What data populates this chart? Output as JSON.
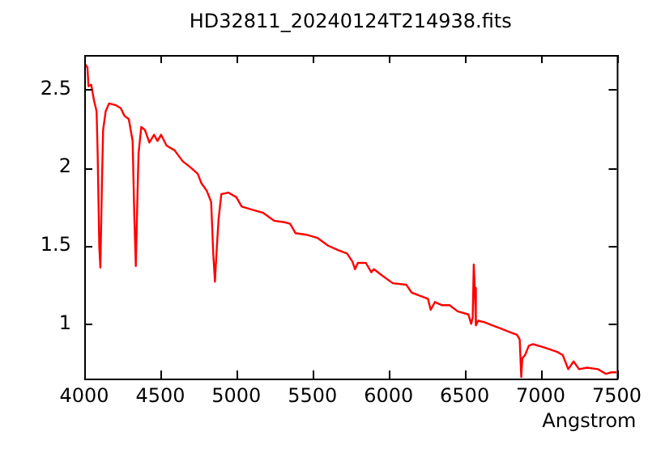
{
  "chart_data": {
    "type": "line",
    "title": "HD32811_20240124T214938.fits",
    "xlabel": "Angstrom",
    "xlim": [
      4000,
      7500
    ],
    "xticks": [
      4000,
      4500,
      5000,
      5500,
      6000,
      6500,
      7000,
      7500
    ],
    "ylim": [
      0.65,
      2.72
    ],
    "yticks": [
      1,
      1.5,
      2,
      2.5
    ],
    "grid": false,
    "legend": false,
    "marker": "none",
    "line_style": "solid",
    "series": [
      {
        "color": "#ff0000",
        "x": [
          4000,
          4021,
          4028,
          4046,
          4064,
          4081,
          4088,
          4099,
          4106,
          4117,
          4124,
          4141,
          4163,
          4205,
          4240,
          4265,
          4293,
          4318,
          4329,
          4339,
          4350,
          4357,
          4375,
          4399,
          4428,
          4459,
          4481,
          4505,
          4541,
          4594,
          4647,
          4700,
          4746,
          4770,
          4806,
          4834,
          4848,
          4859,
          4869,
          4883,
          4901,
          4947,
          5000,
          5035,
          5106,
          5177,
          5247,
          5318,
          5353,
          5389,
          5461,
          5532,
          5603,
          5674,
          5727,
          5762,
          5780,
          5798,
          5851,
          5887,
          5904,
          5957,
          6028,
          6117,
          6152,
          6206,
          6259,
          6277,
          6305,
          6348,
          6401,
          6454,
          6525,
          6543,
          6553,
          6560,
          6567,
          6574,
          6589,
          6631,
          6684,
          6738,
          6791,
          6844,
          6862,
          6872,
          6879,
          6897,
          6922,
          6950,
          7021,
          7110,
          7145,
          7181,
          7216,
          7252,
          7305,
          7376,
          7429,
          7465,
          7500
        ],
        "values": [
          2.67,
          2.64,
          2.52,
          2.53,
          2.43,
          2.36,
          2.1,
          1.49,
          1.36,
          1.93,
          2.24,
          2.36,
          2.41,
          2.4,
          2.38,
          2.33,
          2.31,
          2.17,
          1.69,
          1.37,
          1.83,
          2.09,
          2.26,
          2.24,
          2.16,
          2.21,
          2.17,
          2.21,
          2.14,
          2.11,
          2.04,
          2.0,
          1.96,
          1.9,
          1.85,
          1.78,
          1.45,
          1.27,
          1.45,
          1.67,
          1.83,
          1.84,
          1.81,
          1.75,
          1.73,
          1.71,
          1.66,
          1.65,
          1.64,
          1.58,
          1.57,
          1.55,
          1.5,
          1.47,
          1.45,
          1.4,
          1.35,
          1.39,
          1.39,
          1.33,
          1.35,
          1.31,
          1.26,
          1.25,
          1.2,
          1.18,
          1.16,
          1.09,
          1.14,
          1.12,
          1.12,
          1.08,
          1.06,
          1.0,
          1.04,
          1.38,
          1.23,
          0.99,
          1.02,
          1.01,
          0.99,
          0.97,
          0.95,
          0.93,
          0.9,
          0.66,
          0.78,
          0.8,
          0.86,
          0.87,
          0.85,
          0.82,
          0.8,
          0.71,
          0.76,
          0.71,
          0.72,
          0.71,
          0.68,
          0.69,
          0.69
        ]
      }
    ]
  }
}
